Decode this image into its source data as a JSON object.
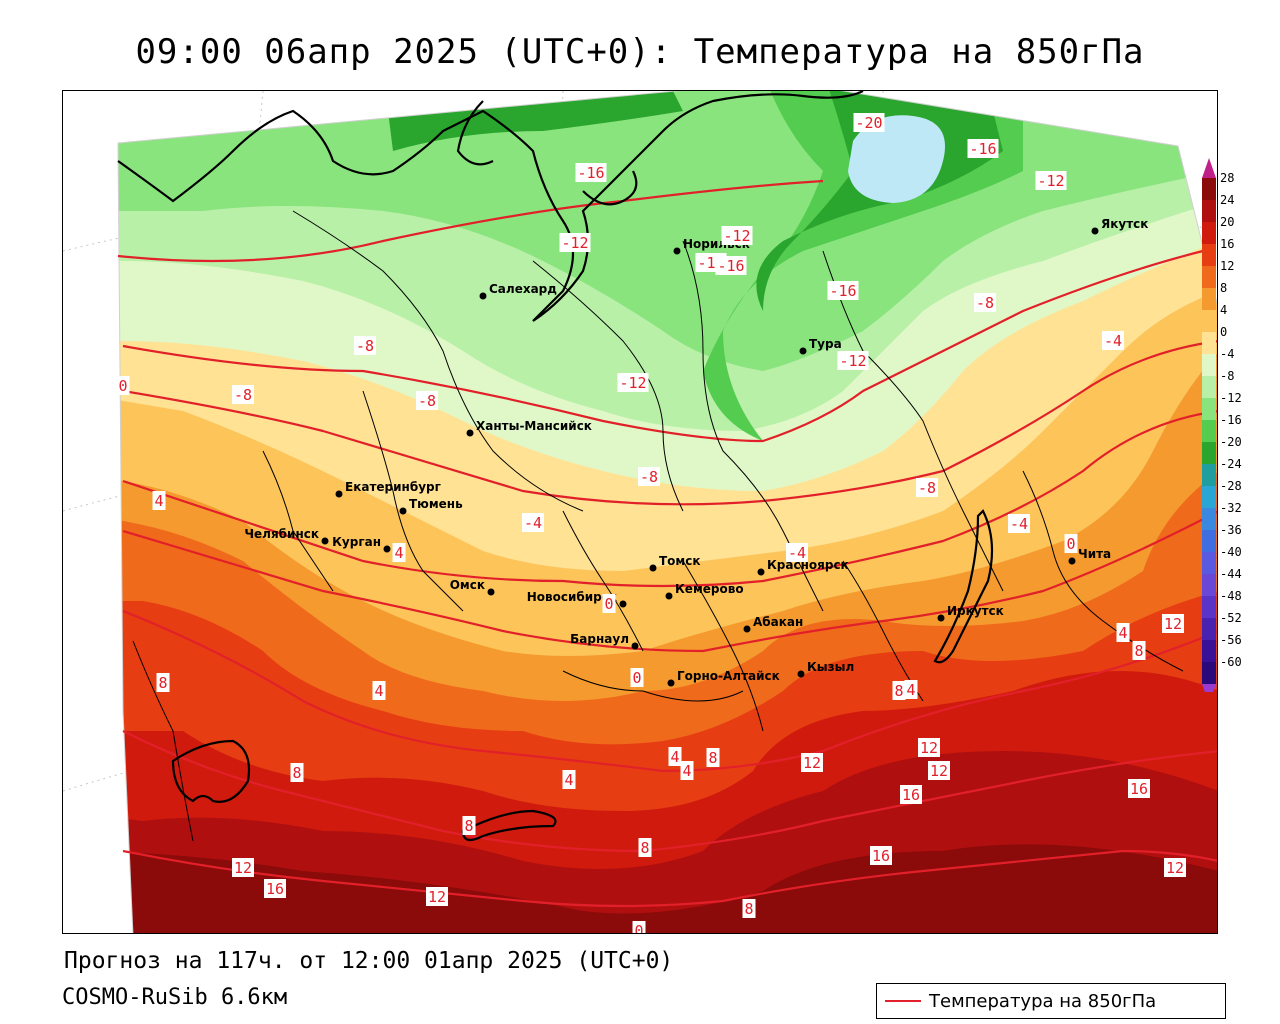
{
  "title": "09:00 06апр 2025 (UTC+0): Температура на 850гПа",
  "forecast_line": "Прогноз на 117ч. от 12:00 01апр 2025 (UTC+0)",
  "model_line": "COSMO-RuSib 6.6км",
  "legend": {
    "label": "Температура на 850гПа",
    "line_color": "#e2202a"
  },
  "cities": [
    {
      "name": "Салехард"
    },
    {
      "name": "Норильск"
    },
    {
      "name": "Якутск"
    },
    {
      "name": "Тура"
    },
    {
      "name": "Ханты-Мансийск"
    },
    {
      "name": "Екатеринбург"
    },
    {
      "name": "Тюмень"
    },
    {
      "name": "Челябинск"
    },
    {
      "name": "Курган"
    },
    {
      "name": "Омск"
    },
    {
      "name": "Новосибирск"
    },
    {
      "name": "Томск"
    },
    {
      "name": "Кемерово"
    },
    {
      "name": "Красноярск"
    },
    {
      "name": "Барнаул"
    },
    {
      "name": "Абакан"
    },
    {
      "name": "Горно-Алтайск"
    },
    {
      "name": "Кызыл"
    },
    {
      "name": "Иркутск"
    },
    {
      "name": "Чита"
    }
  ],
  "isotherm_labels": [
    "-20",
    "-16",
    "-12",
    "-16",
    "-12",
    "-12",
    "-16",
    "-12",
    "-16",
    "-8",
    "-12",
    "-4",
    "-8",
    "-8",
    "-8",
    "-12",
    "-8",
    "0",
    "4",
    "-4",
    "-8",
    "-4",
    "-4",
    "0",
    "4",
    "0",
    "0",
    "4",
    "8",
    "4",
    "8",
    "4",
    "8",
    "8",
    "4",
    "4",
    "12",
    "12",
    "12",
    "16",
    "16",
    "8",
    "12",
    "16",
    "8",
    "12",
    "12",
    "16",
    "12",
    "8",
    "4",
    "8",
    "0"
  ],
  "colorbar": {
    "labels": [
      "28",
      "24",
      "20",
      "16",
      "12",
      "8",
      "4",
      "0",
      "-4",
      "-8",
      "-12",
      "-16",
      "-20",
      "-24",
      "-28",
      "-32",
      "-36",
      "-40",
      "-44",
      "-48",
      "-52",
      "-56",
      "-60"
    ],
    "colors": [
      "#8b0a0a",
      "#b00f0f",
      "#d01a0e",
      "#e63d12",
      "#f06a1c",
      "#f59a2e",
      "#fdc45a",
      "#ffe294",
      "#e0f8c8",
      "#b8f0a8",
      "#8ae47e",
      "#54cc50",
      "#2aa52e",
      "#1e9e9e",
      "#2aa6d6",
      "#3a88e0",
      "#3f6ee0",
      "#5a5ae0",
      "#6a48d6",
      "#5a34c8",
      "#4a22b0",
      "#3a1096",
      "#2a0a7a"
    ],
    "top_color": "#c0208a",
    "bottom_color": "#9a3ad0"
  },
  "map_colors": {
    "outside": "#ffffff",
    "lake": "#bfe8f6",
    "isotherm": "#e2202a",
    "coast": "#000000"
  }
}
